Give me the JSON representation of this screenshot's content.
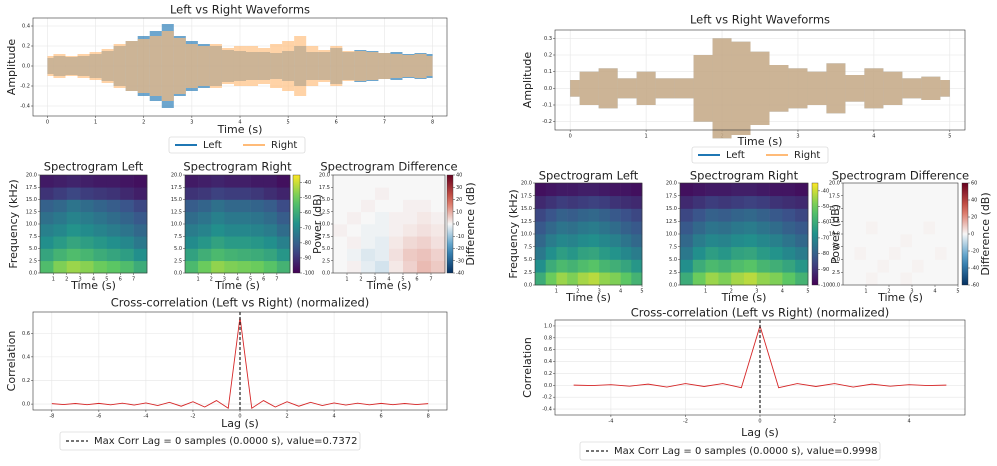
{
  "chart_data": [
    {
      "type": "waveform",
      "title": "Left vs Right Waveforms",
      "xlabel": "Time (s)",
      "ylabel": "Amplitude",
      "grid": true,
      "xlim": [
        -0.3,
        8.3
      ],
      "ylim": [
        -0.5,
        0.48
      ],
      "xticks": [
        0,
        1,
        2,
        3,
        4,
        5,
        6,
        7,
        8
      ],
      "yticks": [
        -0.4,
        -0.2,
        {
          "value": 0,
          "label": "0.0"
        },
        0.2,
        0.4
      ],
      "x": [
        0,
        0.25,
        0.5,
        0.75,
        1,
        1.25,
        1.5,
        1.75,
        2,
        2.25,
        2.5,
        2.75,
        3,
        3.25,
        3.5,
        3.75,
        4,
        4.25,
        4.5,
        4.75,
        5,
        5.25,
        5.5,
        5.75,
        6,
        6.25,
        6.5,
        6.75,
        7,
        7.25,
        7.5,
        7.75,
        8
      ],
      "series": [
        {
          "name": "Left",
          "color": "#1f77b4",
          "values": [
            0.08,
            0.1,
            0.09,
            0.1,
            0.12,
            0.15,
            0.2,
            0.25,
            0.3,
            0.35,
            0.42,
            0.3,
            0.25,
            0.22,
            0.2,
            0.16,
            0.15,
            0.14,
            0.14,
            0.13,
            0.15,
            0.2,
            0.14,
            0.14,
            0.18,
            0.14,
            0.16,
            0.15,
            0.13,
            0.14,
            0.12,
            0.13,
            0.12
          ]
        },
        {
          "name": "Right",
          "color": "#ffbb78",
          "values": [
            0.1,
            0.12,
            0.1,
            0.12,
            0.14,
            0.17,
            0.22,
            0.25,
            0.27,
            0.3,
            0.35,
            0.28,
            0.22,
            0.2,
            0.22,
            0.18,
            0.2,
            0.2,
            0.18,
            0.22,
            0.25,
            0.3,
            0.2,
            0.16,
            0.2,
            0.15,
            0.15,
            0.14,
            0.13,
            0.12,
            0.11,
            0.12,
            0.1
          ]
        }
      ]
    },
    {
      "type": "heatmap",
      "title": "Spectrogram Left",
      "xlabel": "Time (s)",
      "ylabel": "Frequency (kHz)",
      "cmap": "viridis",
      "clim": [
        -100,
        -35
      ],
      "xlim": [
        0,
        8
      ],
      "ylim": [
        0,
        20
      ],
      "xticks": [
        1,
        2,
        3,
        4,
        5,
        6,
        7
      ],
      "yticks": [
        {
          "value": 0,
          "label": "0.0"
        },
        2.5,
        {
          "value": 5,
          "label": "5.0"
        },
        7.5,
        {
          "value": 10,
          "label": "10.0"
        },
        12.5,
        {
          "value": 15,
          "label": "15.0"
        },
        17.5,
        {
          "value": 20,
          "label": "20.0"
        }
      ],
      "z": [
        [
          -55,
          -48,
          -45,
          -47,
          -50,
          -52,
          -55,
          -60
        ],
        [
          -62,
          -58,
          -55,
          -57,
          -60,
          -62,
          -64,
          -68
        ],
        [
          -68,
          -65,
          -62,
          -64,
          -66,
          -68,
          -70,
          -74
        ],
        [
          -72,
          -70,
          -67,
          -69,
          -71,
          -73,
          -75,
          -78
        ],
        [
          -76,
          -74,
          -71,
          -73,
          -75,
          -77,
          -79,
          -82
        ],
        [
          -80,
          -78,
          -75,
          -77,
          -79,
          -81,
          -83,
          -86
        ],
        [
          -90,
          -88,
          -86,
          -88,
          -89,
          -90,
          -92,
          -94
        ],
        [
          -95,
          -94,
          -93,
          -94,
          -95,
          -95,
          -96,
          -97
        ]
      ]
    },
    {
      "type": "heatmap",
      "title": "Spectrogram Right",
      "xlabel": "Time (s)",
      "cmap": "viridis",
      "clim": [
        -100,
        -35
      ],
      "clabel": "Power (dB)",
      "cticks": [
        -40,
        -50,
        -60,
        -70,
        -80,
        -90,
        -100
      ],
      "xlim": [
        0,
        8
      ],
      "ylim": [
        0,
        20
      ],
      "xticks": [
        1,
        2,
        3,
        4,
        5,
        6,
        7
      ],
      "yticks": [
        {
          "value": 0,
          "label": "0.0"
        },
        2.5,
        {
          "value": 5,
          "label": "5.0"
        },
        7.5,
        {
          "value": 10,
          "label": "10.0"
        },
        12.5,
        {
          "value": 15,
          "label": "15.0"
        },
        17.5,
        {
          "value": 20,
          "label": "20.0"
        }
      ],
      "z": [
        [
          -56,
          -50,
          -46,
          -48,
          -49,
          -50,
          -53,
          -58
        ],
        [
          -63,
          -59,
          -56,
          -58,
          -59,
          -60,
          -62,
          -66
        ],
        [
          -69,
          -66,
          -63,
          -65,
          -65,
          -66,
          -68,
          -72
        ],
        [
          -73,
          -71,
          -68,
          -70,
          -70,
          -71,
          -73,
          -77
        ],
        [
          -77,
          -75,
          -72,
          -74,
          -74,
          -75,
          -77,
          -81
        ],
        [
          -81,
          -79,
          -76,
          -78,
          -78,
          -79,
          -81,
          -85
        ],
        [
          -90,
          -89,
          -87,
          -88,
          -88,
          -89,
          -91,
          -93
        ],
        [
          -95,
          -94,
          -93,
          -94,
          -94,
          -95,
          -95,
          -97
        ]
      ]
    },
    {
      "type": "heatmap",
      "title": "Spectrogram Difference",
      "xlabel": "Time (s)",
      "cmap": "RdBu_r",
      "clim": [
        -40,
        40
      ],
      "clabel": "Difference (dB)",
      "cticks": [
        40,
        30,
        20,
        10,
        0,
        -10,
        -20,
        -30,
        -40
      ],
      "xlim": [
        0,
        8
      ],
      "ylim": [
        0,
        20
      ],
      "xticks": [
        1,
        2,
        3,
        4,
        5,
        6,
        7
      ],
      "yticks": [
        {
          "value": 0,
          "label": "0.0"
        },
        2.5,
        {
          "value": 5,
          "label": "5.0"
        },
        7.5,
        {
          "value": 10,
          "label": "10.0"
        },
        12.5,
        {
          "value": 15,
          "label": "15.0"
        },
        17.5,
        {
          "value": 20,
          "label": "20.0"
        }
      ],
      "z": [
        [
          0,
          1,
          -2,
          -4,
          2,
          5,
          8,
          6
        ],
        [
          0,
          -1,
          -3,
          -2,
          3,
          6,
          7,
          5
        ],
        [
          0,
          1,
          -1,
          -2,
          2,
          4,
          5,
          3
        ],
        [
          1,
          0,
          -1,
          -1,
          1,
          2,
          3,
          2
        ],
        [
          0,
          1,
          0,
          -1,
          1,
          1,
          2,
          1
        ],
        [
          0,
          0,
          1,
          0,
          0,
          1,
          1,
          0
        ],
        [
          0,
          0,
          0,
          1,
          0,
          0,
          0,
          0
        ],
        [
          0,
          0,
          0,
          0,
          0,
          0,
          0,
          0
        ]
      ]
    },
    {
      "type": "line",
      "title": "Cross-correlation (Left vs Right) (normalized)",
      "xlabel": "Lag (s)",
      "ylabel": "Correlation",
      "grid": true,
      "color": "#d62728",
      "xlim": [
        -8.8,
        8.8
      ],
      "ylim": [
        -0.05,
        0.78
      ],
      "xticks": [
        -8,
        -6,
        -4,
        -2,
        0,
        2,
        4,
        6,
        8
      ],
      "yticks": [
        {
          "value": 0,
          "label": "0.0"
        },
        0.2,
        0.4,
        0.6
      ],
      "x": [
        -8,
        -7.5,
        -7,
        -6.5,
        -6,
        -5.5,
        -5,
        -4.5,
        -4,
        -3.5,
        -3,
        -2.5,
        -2,
        -1.5,
        -1,
        -0.5,
        0,
        0.5,
        1,
        1.5,
        2,
        2.5,
        3,
        3.5,
        4,
        4.5,
        5,
        5.5,
        6,
        6.5,
        7,
        7.5,
        8
      ],
      "values": [
        0.004,
        -0.004,
        0.005,
        -0.005,
        0.006,
        -0.006,
        0.008,
        -0.008,
        0.01,
        -0.012,
        0.015,
        -0.018,
        0.02,
        -0.025,
        0.03,
        -0.035,
        0.7372,
        -0.035,
        0.03,
        -0.025,
        0.02,
        -0.018,
        0.015,
        -0.012,
        0.01,
        -0.008,
        0.008,
        -0.006,
        0.006,
        -0.005,
        0.005,
        -0.004,
        0.004
      ],
      "marker_x": 0,
      "legend_label": "Max Corr Lag = 0 samples (0.0000 s), value=0.7372"
    },
    {
      "type": "waveform",
      "title": "Left vs Right Waveforms",
      "xlabel": "Time (s)",
      "ylabel": "Amplitude",
      "grid": true,
      "xlim": [
        -0.2,
        5.2
      ],
      "ylim": [
        -0.25,
        0.35
      ],
      "xticks": [
        0,
        1,
        2,
        3,
        4,
        5
      ],
      "yticks": [
        -0.2,
        -0.1,
        {
          "value": 0,
          "label": "0.0"
        },
        0.1,
        0.2,
        0.3
      ],
      "x": [
        0,
        0.25,
        0.5,
        0.75,
        1,
        1.25,
        1.5,
        1.75,
        2,
        2.25,
        2.5,
        2.75,
        3,
        3.25,
        3.5,
        3.75,
        4,
        4.25,
        4.5,
        4.75,
        5
      ],
      "series": [
        {
          "name": "Left",
          "color": "#1f77b4",
          "values": [
            0.05,
            0.1,
            0.12,
            0.06,
            0.1,
            0.06,
            0.06,
            0.2,
            0.3,
            0.28,
            0.22,
            0.14,
            0.12,
            0.1,
            0.15,
            0.08,
            0.12,
            0.1,
            0.06,
            0.07,
            0.05
          ]
        },
        {
          "name": "Right",
          "color": "#ffbb78",
          "values": [
            0.05,
            0.1,
            0.12,
            0.06,
            0.1,
            0.06,
            0.06,
            0.2,
            0.3,
            0.28,
            0.22,
            0.14,
            0.12,
            0.1,
            0.15,
            0.08,
            0.12,
            0.1,
            0.06,
            0.07,
            0.05
          ]
        }
      ]
    },
    {
      "type": "heatmap",
      "title": "Spectrogram Left",
      "xlabel": "Time (s)",
      "ylabel": "Frequency (kHz)",
      "cmap": "viridis",
      "clim": [
        -100,
        -35
      ],
      "xlim": [
        0,
        5
      ],
      "ylim": [
        0,
        20
      ],
      "xticks": [
        1,
        2,
        3,
        4,
        5
      ],
      "yticks": [
        {
          "value": 0,
          "label": "0.0"
        },
        2.5,
        {
          "value": 5,
          "label": "5.0"
        },
        7.5,
        {
          "value": 10,
          "label": "10.0"
        },
        12.5,
        {
          "value": 15,
          "label": "15.0"
        },
        17.5,
        {
          "value": 20,
          "label": "20.0"
        }
      ],
      "z": [
        [
          -60,
          -50,
          -45,
          -48,
          -44,
          -42,
          -46,
          -48,
          -52,
          -58
        ],
        [
          -68,
          -60,
          -56,
          -58,
          -55,
          -53,
          -57,
          -59,
          -62,
          -66
        ],
        [
          -74,
          -68,
          -64,
          -66,
          -63,
          -62,
          -65,
          -67,
          -70,
          -73
        ],
        [
          -78,
          -73,
          -70,
          -71,
          -69,
          -68,
          -70,
          -72,
          -75,
          -78
        ],
        [
          -82,
          -78,
          -75,
          -76,
          -74,
          -73,
          -75,
          -77,
          -80,
          -82
        ],
        [
          -86,
          -83,
          -80,
          -81,
          -79,
          -78,
          -80,
          -82,
          -84,
          -86
        ],
        [
          -92,
          -90,
          -88,
          -89,
          -88,
          -87,
          -88,
          -90,
          -91,
          -92
        ],
        [
          -97,
          -96,
          -95,
          -95,
          -94,
          -94,
          -95,
          -96,
          -96,
          -97
        ]
      ]
    },
    {
      "type": "heatmap",
      "title": "Spectrogram Right",
      "xlabel": "Time (s)",
      "cmap": "viridis",
      "clim": [
        -100,
        -35
      ],
      "clabel": "Power (dB)",
      "cticks": [
        -40,
        -50,
        -60,
        -70,
        -80,
        -90,
        -100
      ],
      "xlim": [
        0,
        5
      ],
      "ylim": [
        0,
        20
      ],
      "xticks": [
        1,
        2,
        3,
        4,
        5
      ],
      "yticks": [
        {
          "value": 0,
          "label": "0.0"
        },
        2.5,
        {
          "value": 5,
          "label": "5.0"
        },
        7.5,
        {
          "value": 10,
          "label": "10.0"
        },
        12.5,
        {
          "value": 15,
          "label": "15.0"
        },
        17.5,
        {
          "value": 20,
          "label": "20.0"
        }
      ],
      "z": [
        [
          -60,
          -50,
          -45,
          -48,
          -44,
          -42,
          -46,
          -48,
          -52,
          -58
        ],
        [
          -68,
          -60,
          -56,
          -58,
          -55,
          -53,
          -57,
          -59,
          -62,
          -66
        ],
        [
          -74,
          -68,
          -64,
          -66,
          -63,
          -62,
          -65,
          -67,
          -70,
          -73
        ],
        [
          -78,
          -73,
          -70,
          -71,
          -69,
          -68,
          -70,
          -72,
          -75,
          -78
        ],
        [
          -82,
          -78,
          -75,
          -76,
          -74,
          -73,
          -75,
          -77,
          -80,
          -82
        ],
        [
          -86,
          -83,
          -80,
          -81,
          -79,
          -78,
          -80,
          -82,
          -84,
          -86
        ],
        [
          -92,
          -90,
          -88,
          -89,
          -88,
          -87,
          -88,
          -90,
          -91,
          -92
        ],
        [
          -97,
          -96,
          -95,
          -95,
          -94,
          -94,
          -95,
          -96,
          -96,
          -97
        ]
      ]
    },
    {
      "type": "heatmap",
      "title": "Spectrogram Difference",
      "xlabel": "Time (s)",
      "cmap": "RdBu_r",
      "clim": [
        -60,
        60
      ],
      "clabel": "Difference (dB)",
      "cticks": [
        60,
        40,
        20,
        0,
        -20,
        -40,
        -60
      ],
      "xlim": [
        0,
        5
      ],
      "ylim": [
        0,
        20
      ],
      "xticks": [
        1,
        2,
        3,
        4,
        5
      ],
      "yticks": [
        {
          "value": 0,
          "label": "0.0"
        },
        2.5,
        {
          "value": 5,
          "label": "5.0"
        },
        7.5,
        {
          "value": 10,
          "label": "10.0"
        },
        12.5,
        {
          "value": 15,
          "label": "15.0"
        },
        17.5,
        {
          "value": 20,
          "label": "20.0"
        }
      ],
      "z": [
        [
          0,
          0,
          1,
          0,
          0,
          1,
          0,
          0,
          0,
          0
        ],
        [
          0,
          0,
          0,
          1,
          0,
          0,
          1,
          0,
          0,
          0
        ],
        [
          0,
          1,
          0,
          0,
          1,
          0,
          0,
          0,
          1,
          0
        ],
        [
          0,
          0,
          0,
          0,
          0,
          1,
          0,
          0,
          0,
          0
        ],
        [
          0,
          0,
          1,
          0,
          0,
          0,
          0,
          1,
          0,
          0
        ],
        [
          0,
          0,
          0,
          0,
          0,
          0,
          0,
          0,
          0,
          0
        ],
        [
          0,
          0,
          0,
          0,
          0,
          0,
          0,
          0,
          0,
          0
        ],
        [
          0,
          0,
          0,
          0,
          0,
          0,
          0,
          0,
          0,
          0
        ]
      ]
    },
    {
      "type": "line",
      "title": "Cross-correlation (Left vs Right) (normalized)",
      "xlabel": "Lag (s)",
      "ylabel": "Correlation",
      "grid": true,
      "color": "#d62728",
      "xlim": [
        -5.5,
        5.5
      ],
      "ylim": [
        -0.5,
        1.1
      ],
      "xticks": [
        -4,
        -2,
        0,
        2,
        4
      ],
      "yticks": [
        -0.4,
        -0.2,
        {
          "value": 0,
          "label": "0.0"
        },
        0.2,
        0.4,
        0.6,
        0.8,
        {
          "value": 1,
          "label": "1.0"
        }
      ],
      "x": [
        -5,
        -4.5,
        -4,
        -3.5,
        -3,
        -2.5,
        -2,
        -1.5,
        -1,
        -0.5,
        0,
        0.5,
        1,
        1.5,
        2,
        2.5,
        3,
        3.5,
        4,
        4.5,
        5
      ],
      "values": [
        0.003,
        -0.005,
        0.01,
        -0.015,
        0.02,
        -0.03,
        0.03,
        -0.02,
        0.03,
        -0.04,
        0.9998,
        -0.04,
        0.03,
        -0.02,
        0.03,
        -0.03,
        0.02,
        -0.015,
        0.01,
        -0.005,
        0.003
      ],
      "marker_x": 0,
      "legend_label": "Max Corr Lag = 0 samples (0.0000 s), value=0.9998"
    }
  ]
}
